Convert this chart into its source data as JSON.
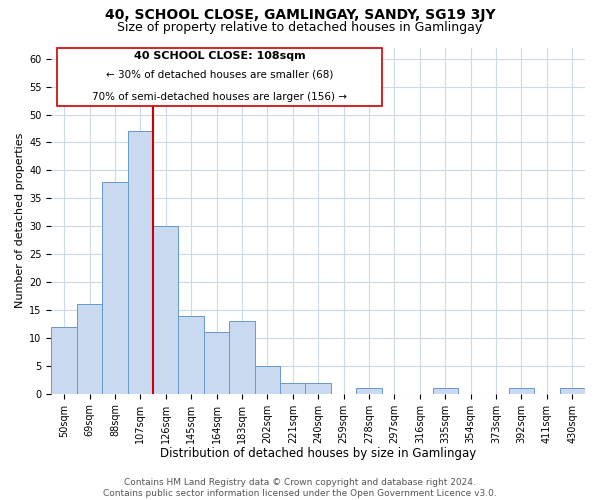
{
  "title": "40, SCHOOL CLOSE, GAMLINGAY, SANDY, SG19 3JY",
  "subtitle": "Size of property relative to detached houses in Gamlingay",
  "xlabel": "Distribution of detached houses by size in Gamlingay",
  "ylabel": "Number of detached properties",
  "footer_line1": "Contains HM Land Registry data © Crown copyright and database right 2024.",
  "footer_line2": "Contains public sector information licensed under the Open Government Licence v3.0.",
  "bin_labels": [
    "50sqm",
    "69sqm",
    "88sqm",
    "107sqm",
    "126sqm",
    "145sqm",
    "164sqm",
    "183sqm",
    "202sqm",
    "221sqm",
    "240sqm",
    "259sqm",
    "278sqm",
    "297sqm",
    "316sqm",
    "335sqm",
    "354sqm",
    "373sqm",
    "392sqm",
    "411sqm",
    "430sqm"
  ],
  "bar_heights": [
    12,
    16,
    38,
    47,
    30,
    14,
    11,
    13,
    5,
    2,
    2,
    0,
    1,
    0,
    0,
    1,
    0,
    0,
    1,
    0,
    1
  ],
  "bar_color": "#c8d9f0",
  "bar_edge_color": "#6699cc",
  "vline_x": 3.5,
  "vline_color": "#cc0000",
  "annotation_title": "40 SCHOOL CLOSE: 108sqm",
  "annotation_line1": "← 30% of detached houses are smaller (68)",
  "annotation_line2": "70% of semi-detached houses are larger (156) →",
  "annotation_box_color": "#ffffff",
  "annotation_box_edge": "#cc0000",
  "ylim": [
    0,
    62
  ],
  "yticks": [
    0,
    5,
    10,
    15,
    20,
    25,
    30,
    35,
    40,
    45,
    50,
    55,
    60
  ],
  "background_color": "#ffffff",
  "grid_color": "#ccd9e8",
  "title_fontsize": 10,
  "subtitle_fontsize": 9,
  "xlabel_fontsize": 8.5,
  "ylabel_fontsize": 8,
  "tick_fontsize": 7,
  "footer_fontsize": 6.5
}
